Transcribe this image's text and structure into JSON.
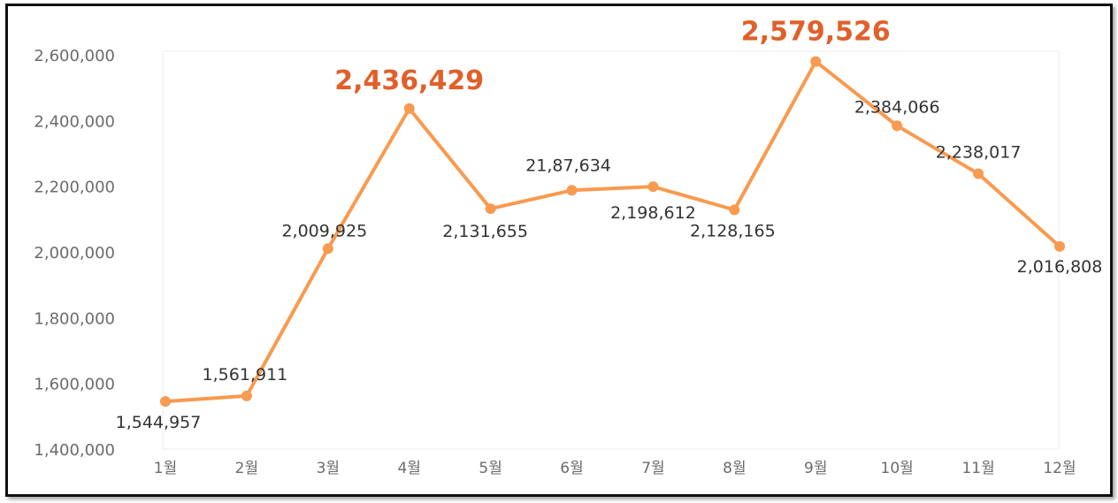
{
  "chart_data": {
    "type": "line",
    "categories": [
      "1월",
      "2월",
      "3월",
      "4월",
      "5월",
      "6월",
      "7월",
      "8월",
      "9월",
      "10월",
      "11월",
      "12월"
    ],
    "values": [
      1544957,
      1561911,
      2009925,
      2436429,
      2131655,
      2187634,
      2198612,
      2128165,
      2579526,
      2384066,
      2238017,
      2016808
    ],
    "data_labels": [
      "1,544,957",
      "1,561,911",
      "2,009,925",
      "2,436,429",
      "2,131,655",
      "21,87,634",
      "2,198,612",
      "2,128,165",
      "2,579,526",
      "2,384,066",
      "2,238,017",
      "2,016,808"
    ],
    "highlighted_indices": [
      3,
      8
    ],
    "ylim": [
      1400000,
      2600000
    ],
    "yticks": [
      1400000,
      1600000,
      1800000,
      2000000,
      2200000,
      2400000,
      2600000
    ],
    "ytick_labels": [
      "1,400,000",
      "1,600,000",
      "1,800,000",
      "2,000,000",
      "2,200,000",
      "2,400,000",
      "2,600,000"
    ],
    "grid": false,
    "colors": {
      "line": "#f89a4f",
      "highlight_label": "#e0602a",
      "label": "#333333",
      "tick": "#6b6b6b"
    }
  }
}
